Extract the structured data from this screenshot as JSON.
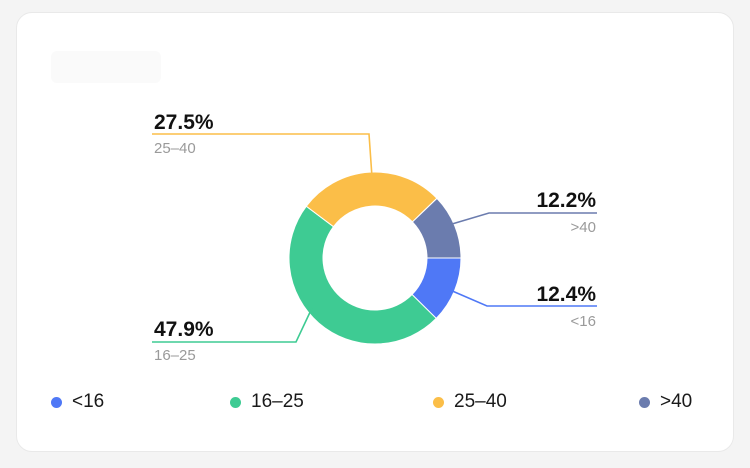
{
  "chart_data": {
    "type": "pie",
    "subtype": "donut",
    "title": "",
    "categories": [
      "<16",
      "16-25",
      "25-40",
      ">40"
    ],
    "values": [
      12.4,
      47.9,
      27.5,
      12.2
    ],
    "value_labels": [
      "12.4%",
      "47.9%",
      "27.5%",
      "12.2%"
    ],
    "colors": [
      "#4F78F6",
      "#3ECB93",
      "#FBBE48",
      "#6B7CAE"
    ],
    "legend_position": "bottom"
  },
  "legend": [
    {
      "label": "<16",
      "color": "#4F78F6"
    },
    {
      "label": "16–25",
      "color": "#3ECB93"
    },
    {
      "label": "25–40",
      "color": "#FBBE48"
    },
    {
      "label": ">40",
      "color": "#6B7CAE"
    }
  ],
  "callouts": [
    {
      "value": "12.4%",
      "label": "<16"
    },
    {
      "value": "47.9%",
      "label": "16–25"
    },
    {
      "value": "27.5%",
      "label": "25–40"
    },
    {
      "value": "12.2%",
      "label": ">40"
    }
  ]
}
